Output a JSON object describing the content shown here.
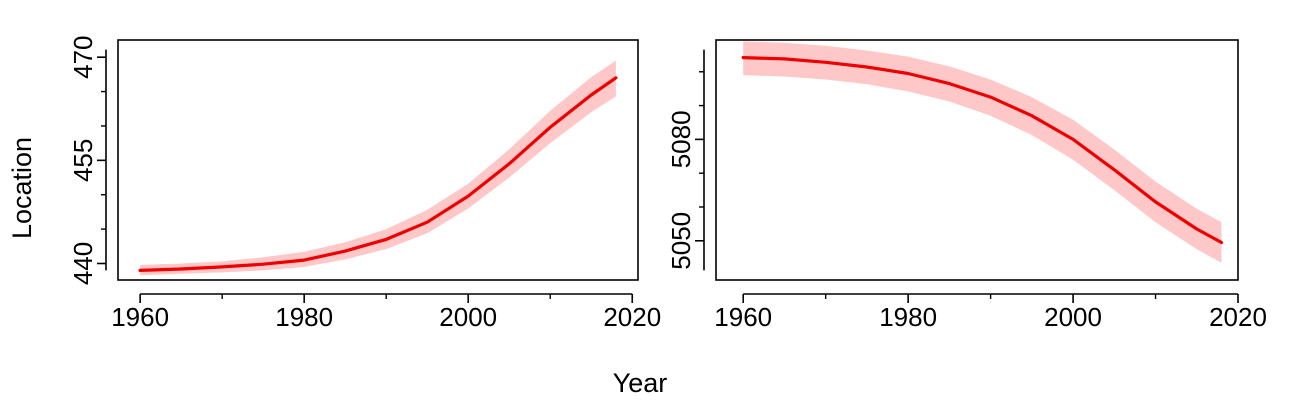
{
  "figure": {
    "xlabel": "Year",
    "ylabel": "Location"
  },
  "chart_data": [
    {
      "type": "line",
      "title": "",
      "xlim": [
        1957.3,
        2020.7
      ],
      "ylim": [
        437.6,
        472.5
      ],
      "x_ticks": [
        1960,
        1980,
        2000,
        2020
      ],
      "x_minor_ticks": [
        1970,
        1990,
        2010
      ],
      "y_ticks": [
        440,
        455,
        470
      ],
      "y_minor_ticks": [
        445,
        450,
        460,
        465
      ],
      "grid": false,
      "legend": "none",
      "series": [
        {
          "x": [
            1960,
            1965,
            1970,
            1975,
            1980,
            1985,
            1990,
            1995,
            2000,
            2005,
            2010,
            2015,
            2018
          ],
          "y": [
            439.0,
            439.2,
            439.5,
            439.9,
            440.5,
            441.8,
            443.5,
            446.0,
            449.8,
            454.5,
            459.8,
            464.5,
            467.0
          ],
          "lower": [
            438.3,
            438.5,
            438.7,
            439.0,
            439.5,
            440.6,
            442.1,
            444.4,
            448.0,
            452.5,
            457.5,
            462.0,
            464.3
          ],
          "upper": [
            439.8,
            440.0,
            440.3,
            440.9,
            441.7,
            443.1,
            445.0,
            447.8,
            451.6,
            456.6,
            462.2,
            467.1,
            469.5
          ],
          "color": "#ee0000",
          "band_color": "#ffc8c8"
        }
      ]
    },
    {
      "type": "line",
      "title": "",
      "xlim": [
        1956.7,
        2020.0
      ],
      "ylim": [
        5038.4,
        5109.4
      ],
      "x_ticks": [
        1960,
        1980,
        2000,
        2020
      ],
      "x_minor_ticks": [
        1970,
        1990,
        2010
      ],
      "y_ticks": [
        5050,
        5080
      ],
      "y_minor_ticks": [
        5060,
        5070,
        5090,
        5100
      ],
      "grid": false,
      "legend": "none",
      "series": [
        {
          "x": [
            1960,
            1965,
            1970,
            1975,
            1980,
            1985,
            1990,
            1995,
            2000,
            2005,
            2010,
            2015,
            2018
          ],
          "y": [
            5104.2,
            5103.8,
            5102.8,
            5101.4,
            5099.5,
            5096.5,
            5092.5,
            5087.0,
            5080.0,
            5071.0,
            5061.5,
            5053.5,
            5049.5
          ],
          "lower": [
            5099.0,
            5098.6,
            5097.7,
            5096.3,
            5094.2,
            5091.2,
            5087.0,
            5081.3,
            5074.0,
            5065.0,
            5055.5,
            5047.5,
            5043.5
          ],
          "upper": [
            5109.0,
            5108.6,
            5107.7,
            5106.3,
            5104.5,
            5101.6,
            5097.7,
            5092.5,
            5085.8,
            5077.0,
            5067.5,
            5059.5,
            5055.5
          ],
          "color": "#ee0000",
          "band_color": "#ffc8c8"
        }
      ]
    }
  ]
}
